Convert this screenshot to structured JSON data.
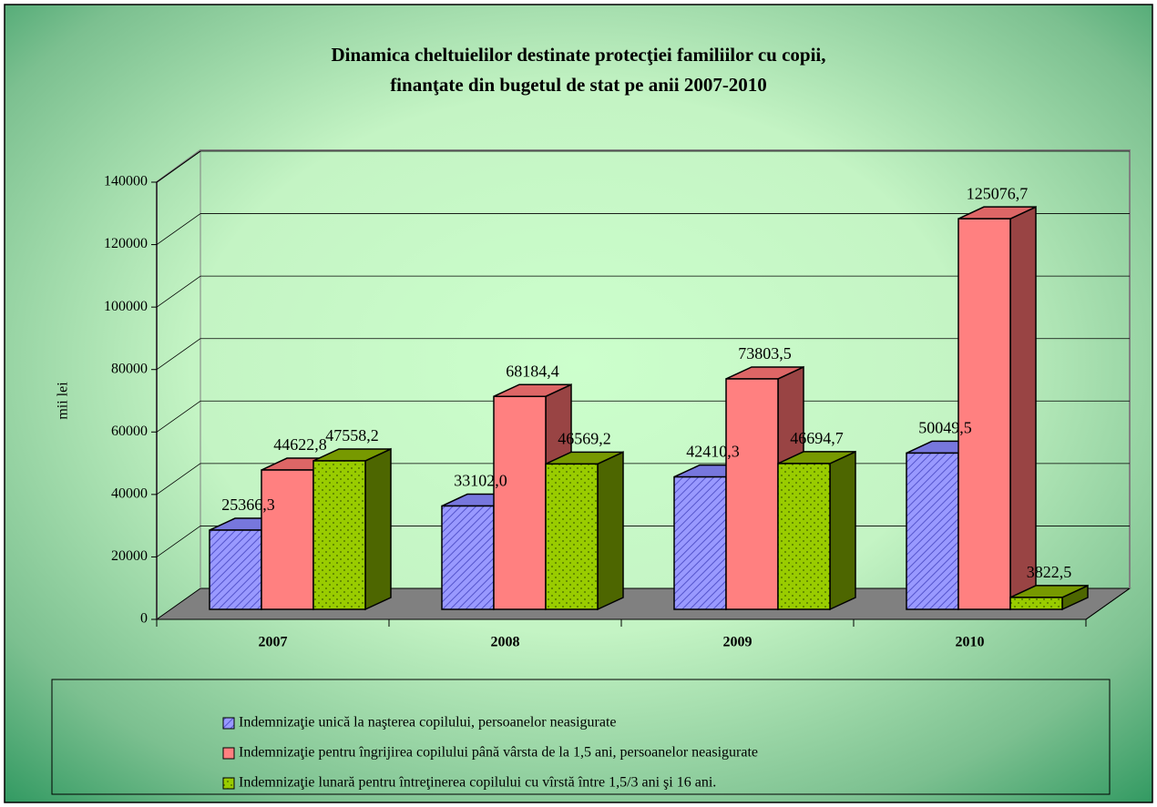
{
  "chart_data": {
    "type": "bar3d",
    "title": [
      "Dinamica cheltuielilor destinate protecţiei familiilor cu copii,",
      "finanţate din bugetul de stat pe anii 2007-2010"
    ],
    "y_label": "mii lei",
    "categories": [
      "2007",
      "2008",
      "2009",
      "2010"
    ],
    "ylim": [
      0,
      140000
    ],
    "yticks": [
      0,
      20000,
      40000,
      60000,
      80000,
      100000,
      120000,
      140000
    ],
    "grid": true,
    "series": [
      {
        "name": "Indemnizaţie unică la naşterea copilului, persoanelor neasigurate",
        "color": "#9999ff",
        "values": [
          25366.3,
          33102.0,
          42410.3,
          50049.5
        ],
        "value_labels": [
          "25366,3",
          "33102,0",
          "42410,3",
          "50049,5"
        ]
      },
      {
        "name": "Indemnizaţie pentru îngrijirea copilului până vârsta de la 1,5 ani, persoanelor neasigurate",
        "color": "#ff8080",
        "values": [
          44622.8,
          68184.4,
          73803.5,
          125076.7
        ],
        "value_labels": [
          "44622,8",
          "68184,4",
          "73803,5",
          "125076,7"
        ]
      },
      {
        "name": "Indemnizaţie lunară pentru întreţinerea copilului cu vîrstă între 1,5/3 ani şi 16 ani.",
        "color": "#99cc00",
        "values": [
          47558.2,
          46569.2,
          46694.7,
          3822.5
        ],
        "value_labels": [
          "47558,2",
          "46569,2",
          "46694,7",
          "3822,5"
        ]
      }
    ]
  }
}
